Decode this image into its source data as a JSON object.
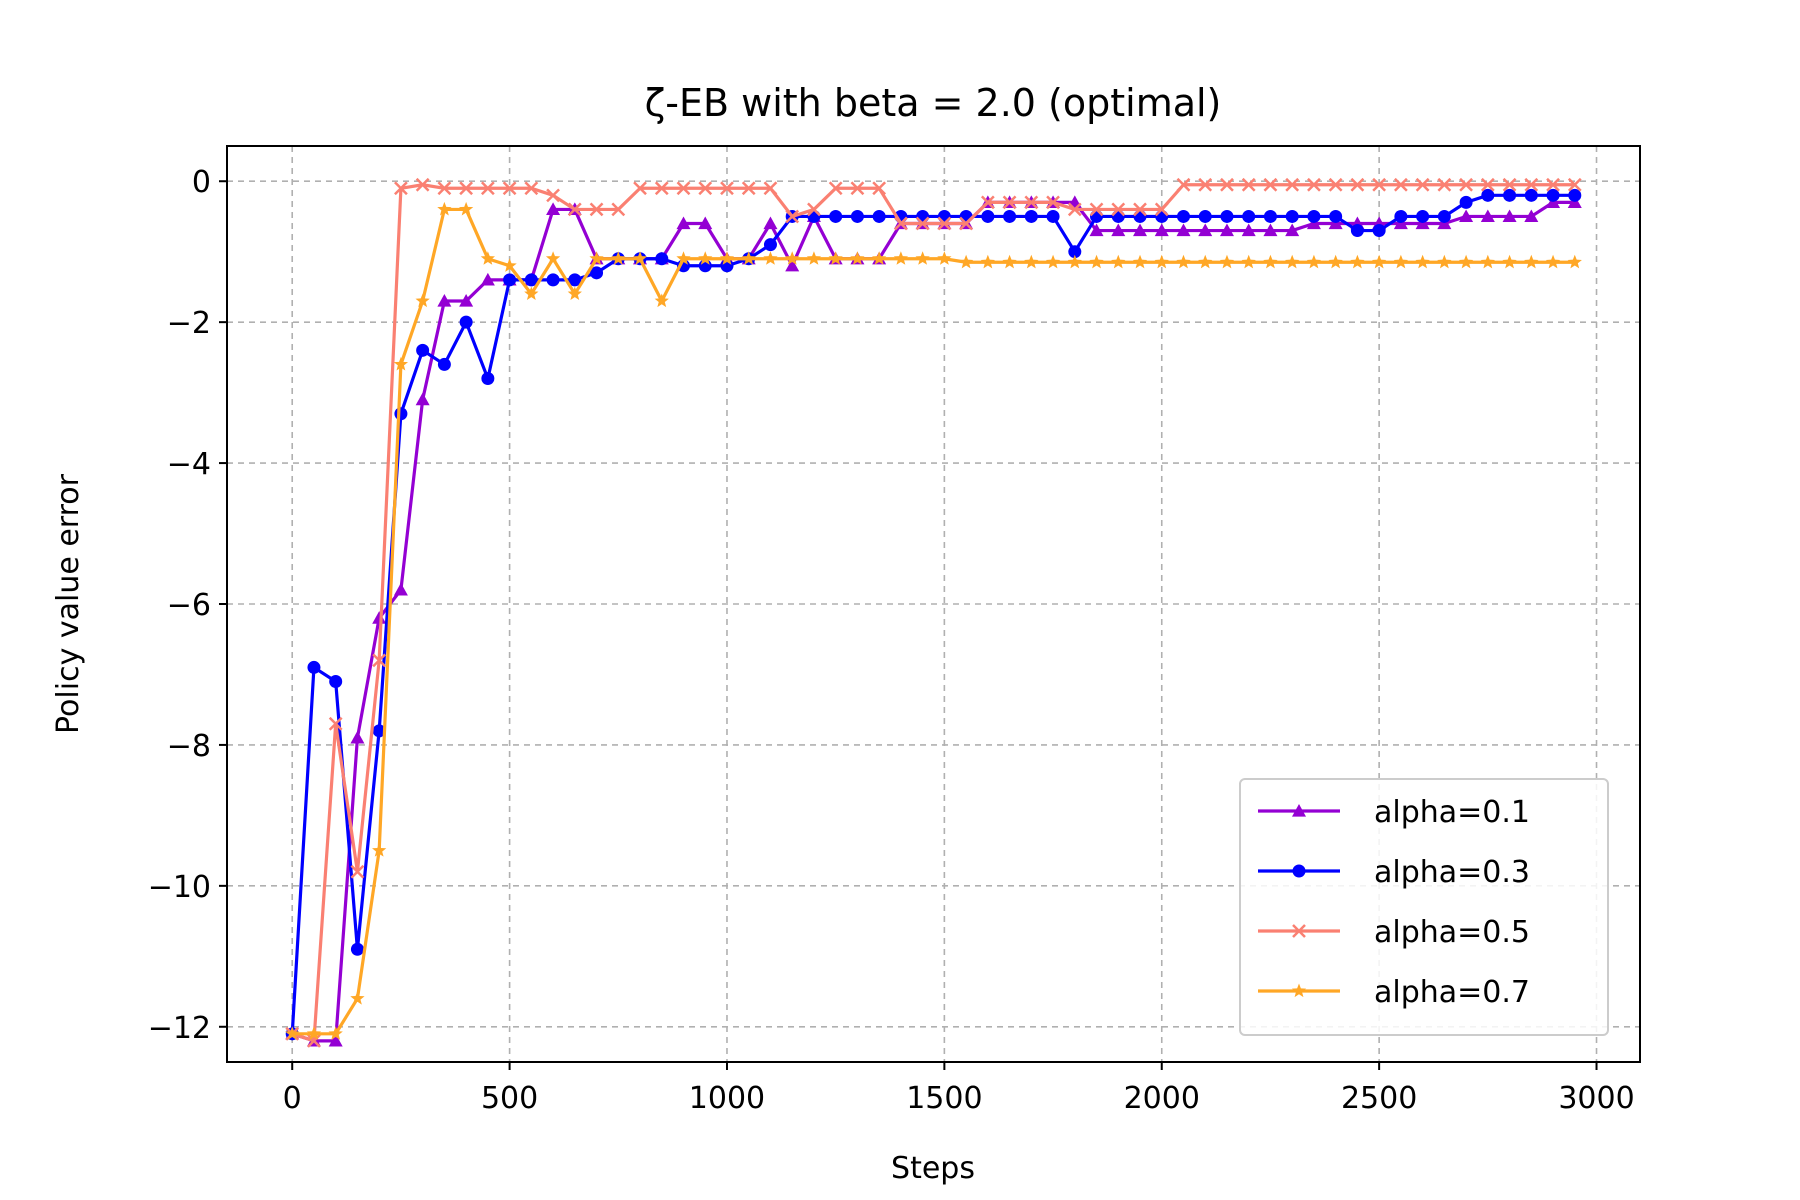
{
  "chart_data": {
    "type": "line",
    "title": "ζ-EB with beta = 2.0 (optimal)",
    "xlabel": "Steps",
    "ylabel": "Policy value error",
    "xlim": [
      -150,
      3100
    ],
    "ylim": [
      -12.5,
      0.5
    ],
    "xticks": [
      0,
      500,
      1000,
      1500,
      2000,
      2500,
      3000
    ],
    "xtick_labels": [
      "0",
      "500",
      "1000",
      "1500",
      "2000",
      "2500",
      "3000"
    ],
    "yticks": [
      0,
      -2,
      -4,
      -6,
      -8,
      -10,
      -12
    ],
    "ytick_labels": [
      "0",
      "−2",
      "−4",
      "−6",
      "−8",
      "−10",
      "−12"
    ],
    "grid": true,
    "legend_position": "lower-right",
    "x": [
      0,
      50,
      100,
      150,
      200,
      250,
      300,
      350,
      400,
      450,
      500,
      550,
      600,
      650,
      700,
      750,
      800,
      850,
      900,
      950,
      1000,
      1050,
      1100,
      1150,
      1200,
      1250,
      1300,
      1350,
      1400,
      1450,
      1500,
      1550,
      1600,
      1650,
      1700,
      1750,
      1800,
      1850,
      1900,
      1950,
      2000,
      2050,
      2100,
      2150,
      2200,
      2250,
      2300,
      2350,
      2400,
      2450,
      2500,
      2550,
      2600,
      2650,
      2700,
      2750,
      2800,
      2850,
      2900,
      2950
    ],
    "series": [
      {
        "name": "alpha=0.1",
        "color": "#9400d3",
        "marker": "triangle",
        "values": [
          -12.1,
          -12.2,
          -12.2,
          -7.9,
          -6.2,
          -5.8,
          -3.1,
          -1.7,
          -1.7,
          -1.4,
          -1.4,
          -1.4,
          -0.4,
          -0.4,
          -1.1,
          -1.1,
          -1.1,
          -1.1,
          -0.6,
          -0.6,
          -1.1,
          -1.1,
          -0.6,
          -1.2,
          -0.5,
          -1.1,
          -1.1,
          -1.1,
          -0.6,
          -0.6,
          -0.6,
          -0.6,
          -0.3,
          -0.3,
          -0.3,
          -0.3,
          -0.3,
          -0.7,
          -0.7,
          -0.7,
          -0.7,
          -0.7,
          -0.7,
          -0.7,
          -0.7,
          -0.7,
          -0.7,
          -0.6,
          -0.6,
          -0.6,
          -0.6,
          -0.6,
          -0.6,
          -0.6,
          -0.5,
          -0.5,
          -0.5,
          -0.5,
          -0.3,
          -0.3
        ]
      },
      {
        "name": "alpha=0.3",
        "color": "#0000ff",
        "marker": "circle",
        "values": [
          -12.1,
          -6.9,
          -7.1,
          -10.9,
          -7.8,
          -3.3,
          -2.4,
          -2.6,
          -2.0,
          -2.8,
          -1.4,
          -1.4,
          -1.4,
          -1.4,
          -1.3,
          -1.1,
          -1.1,
          -1.1,
          -1.2,
          -1.2,
          -1.2,
          -1.1,
          -0.9,
          -0.5,
          -0.5,
          -0.5,
          -0.5,
          -0.5,
          -0.5,
          -0.5,
          -0.5,
          -0.5,
          -0.5,
          -0.5,
          -0.5,
          -0.5,
          -1.0,
          -0.5,
          -0.5,
          -0.5,
          -0.5,
          -0.5,
          -0.5,
          -0.5,
          -0.5,
          -0.5,
          -0.5,
          -0.5,
          -0.5,
          -0.7,
          -0.7,
          -0.5,
          -0.5,
          -0.5,
          -0.3,
          -0.2,
          -0.2,
          -0.2,
          -0.2,
          -0.2
        ]
      },
      {
        "name": "alpha=0.5",
        "color": "#fa8072",
        "marker": "x",
        "values": [
          -12.1,
          -12.2,
          -7.7,
          -9.8,
          -6.8,
          -0.1,
          -0.05,
          -0.1,
          -0.1,
          -0.1,
          -0.1,
          -0.1,
          -0.2,
          -0.4,
          -0.4,
          -0.4,
          -0.1,
          -0.1,
          -0.1,
          -0.1,
          -0.1,
          -0.1,
          -0.1,
          -0.5,
          -0.4,
          -0.1,
          -0.1,
          -0.1,
          -0.6,
          -0.6,
          -0.6,
          -0.6,
          -0.3,
          -0.3,
          -0.3,
          -0.3,
          -0.4,
          -0.4,
          -0.4,
          -0.4,
          -0.4,
          -0.05,
          -0.05,
          -0.05,
          -0.05,
          -0.05,
          -0.05,
          -0.05,
          -0.05,
          -0.05,
          -0.05,
          -0.05,
          -0.05,
          -0.05,
          -0.05,
          -0.05,
          -0.05,
          -0.05,
          -0.05,
          -0.05
        ]
      },
      {
        "name": "alpha=0.7",
        "color": "#ffa726",
        "marker": "star",
        "values": [
          -12.1,
          -12.1,
          -12.1,
          -11.6,
          -9.5,
          -2.6,
          -1.7,
          -0.4,
          -0.4,
          -1.1,
          -1.2,
          -1.6,
          -1.1,
          -1.6,
          -1.1,
          -1.1,
          -1.1,
          -1.7,
          -1.1,
          -1.1,
          -1.1,
          -1.1,
          -1.1,
          -1.1,
          -1.1,
          -1.1,
          -1.1,
          -1.1,
          -1.1,
          -1.1,
          -1.1,
          -1.15,
          -1.15,
          -1.15,
          -1.15,
          -1.15,
          -1.15,
          -1.15,
          -1.15,
          -1.15,
          -1.15,
          -1.15,
          -1.15,
          -1.15,
          -1.15,
          -1.15,
          -1.15,
          -1.15,
          -1.15,
          -1.15,
          -1.15,
          -1.15,
          -1.15,
          -1.15,
          -1.15,
          -1.15,
          -1.15,
          -1.15,
          -1.15,
          -1.15
        ]
      }
    ]
  }
}
